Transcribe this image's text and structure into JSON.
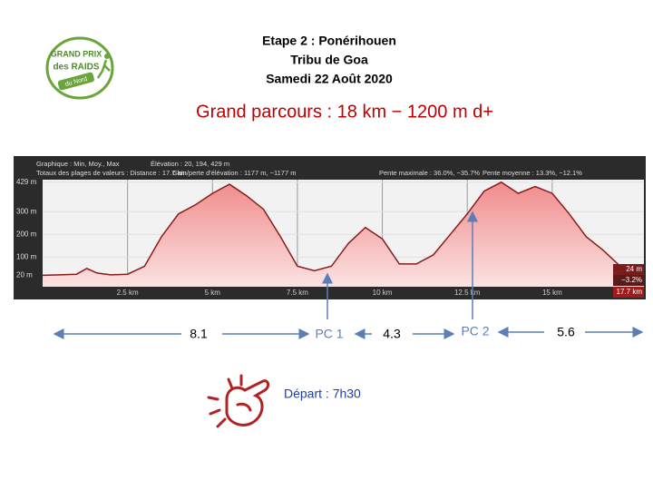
{
  "header": {
    "lines": [
      "Etape 2 : Ponérihouen",
      "Tribu de Goa",
      "Samedi 22 Août 2020"
    ],
    "subtitle": "Grand parcours : 18 km − 1200 m d+"
  },
  "logo": {
    "lines": [
      "GRAND PRIX",
      "des RAIDS",
      "du Nord"
    ]
  },
  "chart_data": {
    "type": "area",
    "info": [
      "Graphique : Min, Moy., Max",
      "Élévation : 20, 194, 429 m",
      "Totaux des plages de valeurs : Distance : 17.7 km",
      "Gain/perte d'élévation : 1177 m, −1177 m",
      "Pente maximale : 36.0%, −35.7%",
      "Pente moyenne : 13.3%, −12.1%"
    ],
    "end_labels": [
      "24 m",
      "−3.2%",
      "17.7 km"
    ],
    "x": [
      0,
      0.5,
      1,
      1.3,
      1.6,
      2,
      2.5,
      3,
      3.5,
      4,
      4.5,
      5,
      5.5,
      6,
      6.5,
      7,
      7.5,
      8,
      8.5,
      9,
      9.5,
      10,
      10.5,
      11,
      11.5,
      12,
      12.5,
      13,
      13.5,
      14,
      14.5,
      15,
      15.5,
      16,
      16.5,
      17,
      17.5,
      17.7
    ],
    "series": [
      {
        "name": "Élévation",
        "color": "#8b1a1a",
        "fill": "#f3a3a3",
        "values": [
          20,
          22,
          25,
          50,
          30,
          22,
          25,
          60,
          190,
          290,
          330,
          380,
          420,
          370,
          310,
          190,
          60,
          40,
          60,
          160,
          230,
          180,
          70,
          70,
          110,
          200,
          290,
          390,
          429,
          380,
          410,
          380,
          290,
          190,
          130,
          60,
          25,
          24
        ]
      }
    ],
    "xlim": [
      0,
      17.7
    ],
    "ylim": [
      -30,
      440
    ],
    "xticks": [
      {
        "value": 2.5,
        "label": "2.5 km"
      },
      {
        "value": 5,
        "label": "5 km"
      },
      {
        "value": 7.5,
        "label": "7.5 km"
      },
      {
        "value": 10,
        "label": "10 km"
      },
      {
        "value": 12.5,
        "label": "12.5 km"
      },
      {
        "value": 15,
        "label": "15 km"
      }
    ],
    "yticks": [
      {
        "value": 20,
        "label": "20 m"
      },
      {
        "value": 100,
        "label": "100 m"
      },
      {
        "value": 200,
        "label": "200 m"
      },
      {
        "value": 300,
        "label": "300 m"
      },
      {
        "value": 429,
        "label": "429 m"
      }
    ],
    "grid": true
  },
  "route": {
    "legs": [
      "8.1",
      "4.3",
      "5.6"
    ],
    "checkpoints": [
      "PC 1",
      "PC 2"
    ],
    "departure": "Départ : 7h30"
  }
}
